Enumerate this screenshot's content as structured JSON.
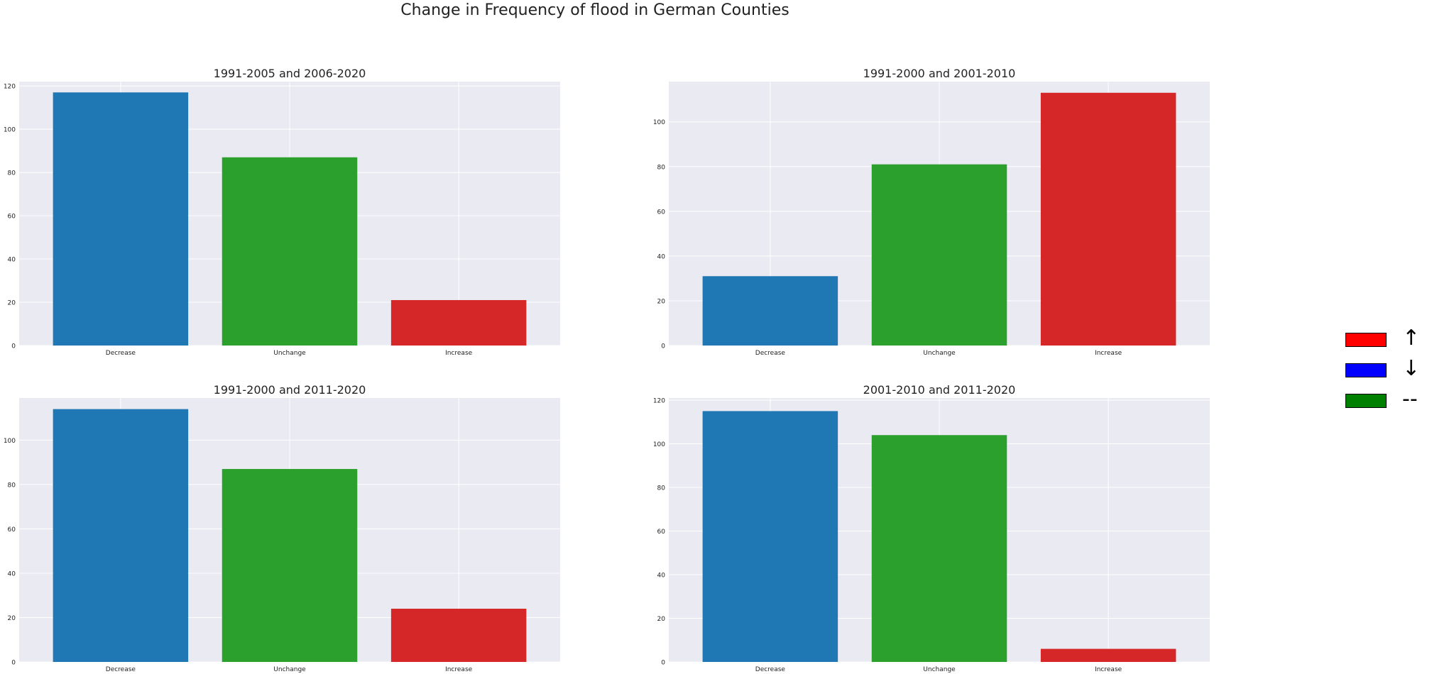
{
  "figure_title": "Change in Frequency of flood in German Counties",
  "legend": {
    "items": [
      {
        "label": "↑",
        "color": "#ff0000"
      },
      {
        "label": "↓",
        "color": "#0000ff"
      },
      {
        "label": "--",
        "color": "#008000"
      }
    ]
  },
  "colors": {
    "Decrease": "#1f77b4",
    "Unchange": "#2ca02c",
    "Increase": "#d62728",
    "background": "#eaeaf2",
    "grid": "#ffffff"
  },
  "chart_data": [
    {
      "type": "bar",
      "title": "1991-2005 and 2006-2020",
      "categories": [
        "Decrease",
        "Unchange",
        "Increase"
      ],
      "values": [
        117,
        87,
        21
      ],
      "ylim": [
        0,
        122
      ],
      "yticks": [
        0,
        20,
        40,
        60,
        80,
        100,
        120
      ],
      "grid": true
    },
    {
      "type": "bar",
      "title": "1991-2000 and 2001-2010",
      "categories": [
        "Decrease",
        "Unchange",
        "Increase"
      ],
      "values": [
        31,
        81,
        113
      ],
      "ylim": [
        0,
        118
      ],
      "yticks": [
        0,
        20,
        40,
        60,
        80,
        100
      ],
      "grid": true
    },
    {
      "type": "bar",
      "title": "1991-2000 and 2011-2020",
      "categories": [
        "Decrease",
        "Unchange",
        "Increase"
      ],
      "values": [
        114,
        87,
        24
      ],
      "ylim": [
        0,
        119
      ],
      "yticks": [
        0,
        20,
        40,
        60,
        80,
        100
      ],
      "grid": true
    },
    {
      "type": "bar",
      "title": "2001-2010 and 2011-2020",
      "categories": [
        "Decrease",
        "Unchange",
        "Increase"
      ],
      "values": [
        115,
        104,
        6
      ],
      "ylim": [
        0,
        121
      ],
      "yticks": [
        0,
        20,
        40,
        60,
        80,
        100,
        120
      ],
      "grid": true
    }
  ]
}
